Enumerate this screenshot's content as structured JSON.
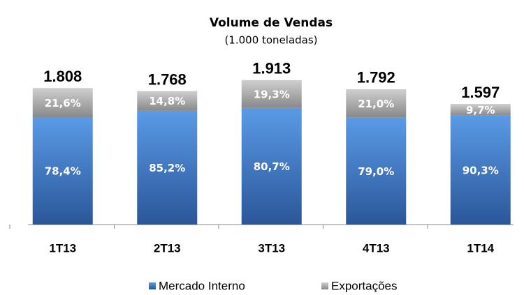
{
  "chart_data": {
    "type": "stacked_bar",
    "title": "Volume de Vendas",
    "subtitle": "(1.000 toneladas)",
    "categories": [
      "1T13",
      "2T13",
      "3T13",
      "4T13",
      "1T14"
    ],
    "totals": [
      {
        "value": 1808,
        "label": "1.808"
      },
      {
        "value": 1768,
        "label": "1.768"
      },
      {
        "value": 1913,
        "label": "1.913"
      },
      {
        "value": 1792,
        "label": "1.792"
      },
      {
        "value": 1597,
        "label": "1.597"
      }
    ],
    "series": [
      {
        "name": "Mercado Interno",
        "color": "#3f7fd0",
        "values": [
          78.4,
          85.2,
          80.7,
          79.0,
          90.3
        ],
        "value_labels": [
          "78,4%",
          "85,2%",
          "80,7%",
          "79,0%",
          "90,3%"
        ]
      },
      {
        "name": "Exportações",
        "color": "#a6a6a6",
        "values": [
          21.6,
          14.8,
          19.3,
          21.0,
          9.7
        ],
        "value_labels": [
          "21,6%",
          "14,8%",
          "19,3%",
          "21,0%",
          "9,7%"
        ]
      }
    ]
  }
}
